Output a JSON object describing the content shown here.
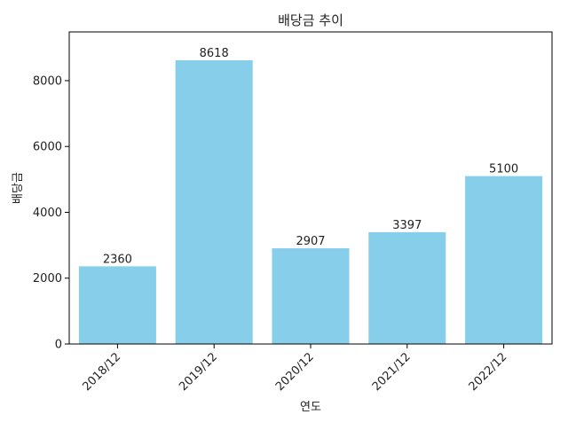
{
  "chart_data": {
    "type": "bar",
    "title": "배당금 추이",
    "xlabel": "연도",
    "ylabel": "배당금",
    "categories": [
      "2018/12",
      "2019/12",
      "2020/12",
      "2021/12",
      "2022/12"
    ],
    "values": [
      2360,
      8618,
      2907,
      3397,
      5100
    ],
    "data_labels": [
      "2360",
      "8618",
      "2907",
      "3397",
      "5100"
    ],
    "ylim": [
      0,
      9480
    ],
    "yticks": [
      0,
      2000,
      4000,
      6000,
      8000
    ],
    "ytick_labels": [
      "0",
      "2000",
      "4000",
      "6000",
      "8000"
    ],
    "bar_color": "#87ceeb",
    "grid": false,
    "legend": "none"
  }
}
